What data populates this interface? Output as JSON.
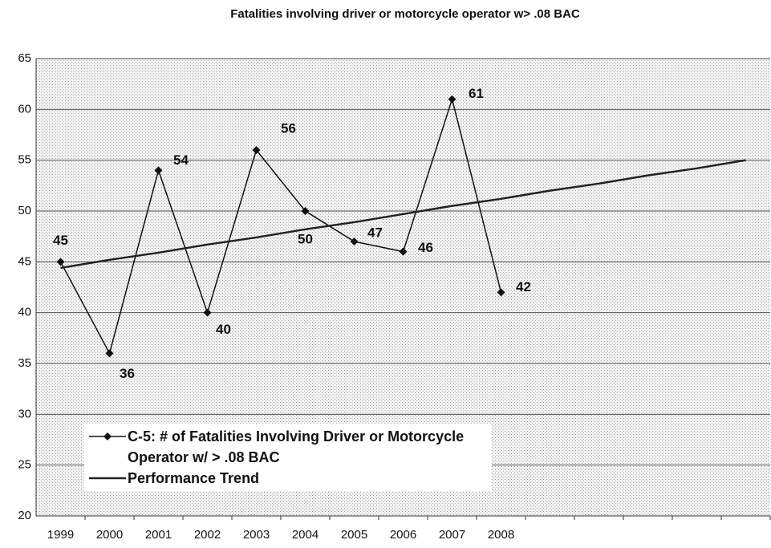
{
  "chart_data": {
    "type": "line",
    "title": "Fatalities involving driver or motorcycle operator w> .08 BAC",
    "categories": [
      "1999",
      "2000",
      "2001",
      "2002",
      "2003",
      "2004",
      "2005",
      "2006",
      "2007",
      "2008",
      null,
      null,
      null,
      null,
      null
    ],
    "series": [
      {
        "name": "C-5: # of Fatalities Involving Driver or Motorcycle Operator w/ > .08 BAC",
        "color": "#111111",
        "values": [
          45,
          36,
          54,
          40,
          56,
          50,
          47,
          46,
          61,
          42,
          null,
          null,
          null,
          null,
          null
        ]
      },
      {
        "name": "Performance Trend",
        "color": "#222222",
        "values": [
          44.4,
          45.2,
          45.9,
          46.7,
          47.4,
          48.2,
          48.9,
          49.7,
          50.5,
          51.2,
          52.0,
          52.7,
          53.5,
          54.2,
          55.0
        ]
      }
    ],
    "ylim": [
      20,
      65
    ],
    "yticks": [
      20,
      25,
      30,
      35,
      40,
      45,
      50,
      55,
      60,
      65
    ],
    "grid": true
  }
}
